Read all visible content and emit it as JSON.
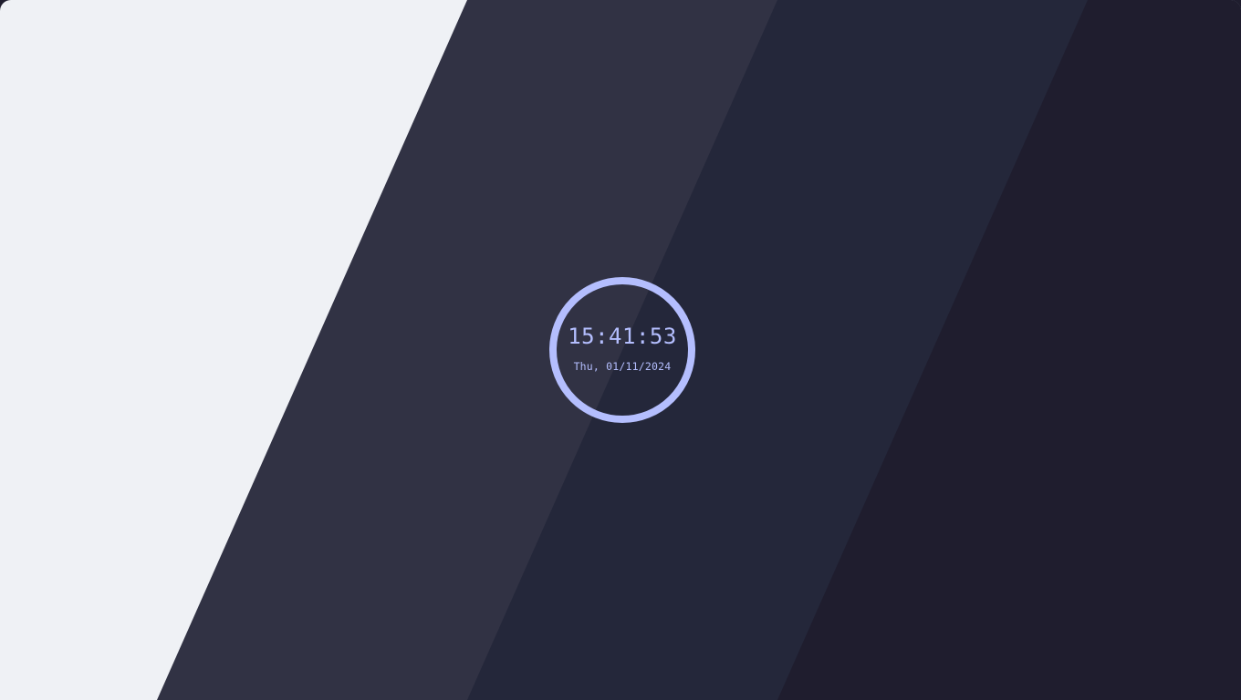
{
  "wallpaper": {
    "colors": {
      "base": "#eff1f5",
      "band_1": "#313244",
      "band_2": "#24273a",
      "band_3": "#1f1d2e"
    }
  },
  "clock": {
    "time": "15:41:53",
    "date": "Thu, 01/11/2024",
    "ring_color": "#b4befe",
    "text_color": "#b4befe"
  }
}
